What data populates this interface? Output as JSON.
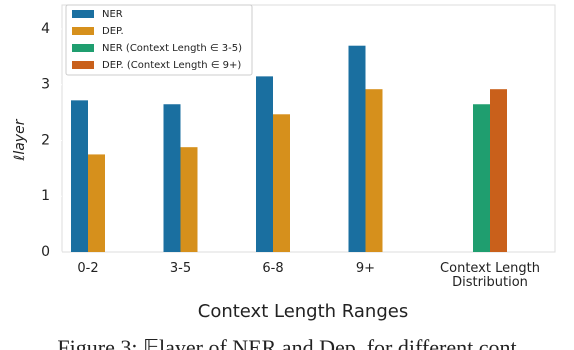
{
  "chart_data": {
    "type": "bar",
    "y_label": "ℓlayer",
    "x_label": "Context Length Ranges",
    "caption": "Figure 3: 𝔼layer of NER and Dep. for different cont",
    "categories": [
      "0-2",
      "3-5",
      "6-8",
      "9+",
      "Context Length Distribution"
    ],
    "series": [
      {
        "name": "NER",
        "color": "#1a6fa0",
        "values": [
          2.72,
          2.65,
          3.15,
          3.7,
          null
        ]
      },
      {
        "name": "DEP.",
        "color": "#d6901c",
        "values": [
          1.75,
          1.88,
          2.47,
          2.92,
          null
        ]
      },
      {
        "name": "NER (Context Length ∈ 3-5)",
        "color": "#1f9e6f",
        "values": [
          null,
          null,
          null,
          null,
          2.65
        ]
      },
      {
        "name": "DEP. (Context Length ∈ 9+)",
        "color": "#c9601b",
        "values": [
          null,
          null,
          null,
          null,
          2.92
        ]
      }
    ],
    "ylim": [
      0,
      4.43
    ],
    "yticks": [
      0,
      1,
      2,
      3,
      4
    ],
    "grid": false,
    "legend": "upper left"
  }
}
